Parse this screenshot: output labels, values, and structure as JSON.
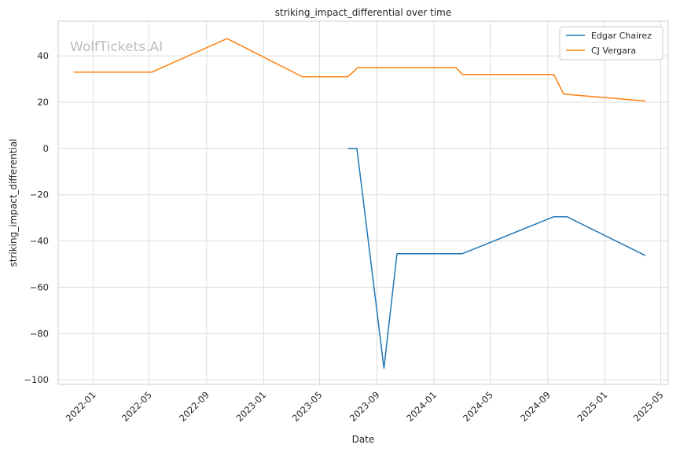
{
  "chart_data": {
    "type": "line",
    "title": "striking_impact_differential over time",
    "xlabel": "Date",
    "ylabel": "striking_impact_differential",
    "watermark": "WolfTickets.AI",
    "x_ticks": [
      "2022-01",
      "2022-05",
      "2022-09",
      "2023-01",
      "2023-05",
      "2023-09",
      "2024-01",
      "2024-05",
      "2024-09",
      "2025-01",
      "2025-05"
    ],
    "y_ticks": [
      40,
      20,
      0,
      -20,
      -40,
      -60,
      -80,
      -100
    ],
    "y_tick_labels": [
      "40",
      "20",
      "0",
      "−20",
      "−40",
      "−60",
      "−80",
      "−100"
    ],
    "xlim": [
      "2021-10-18",
      "2025-05-17"
    ],
    "ylim": [
      -102,
      55
    ],
    "grid": true,
    "legend_position": "top-right",
    "series": [
      {
        "name": "Edgar Chairez",
        "color": "#1f77b4",
        "points": [
          [
            "2023-07-01",
            0
          ],
          [
            "2023-07-20",
            0
          ],
          [
            "2023-09-16",
            -95
          ],
          [
            "2023-10-14",
            -45.5
          ],
          [
            "2024-03-02",
            -45.5
          ],
          [
            "2024-09-14",
            -29.5
          ],
          [
            "2024-10-12",
            -29.5
          ],
          [
            "2025-03-29",
            -46.3
          ]
        ]
      },
      {
        "name": "CJ Vergara",
        "color": "#ff7f0e",
        "points": [
          [
            "2021-11-20",
            33
          ],
          [
            "2022-05-07",
            33
          ],
          [
            "2022-10-15",
            47.5
          ],
          [
            "2023-03-25",
            31
          ],
          [
            "2023-07-01",
            31
          ],
          [
            "2023-07-22",
            35
          ],
          [
            "2024-02-17",
            35
          ],
          [
            "2024-03-02",
            32
          ],
          [
            "2024-09-14",
            32
          ],
          [
            "2024-10-05",
            23.5
          ],
          [
            "2025-03-29",
            20.5
          ]
        ]
      }
    ]
  }
}
